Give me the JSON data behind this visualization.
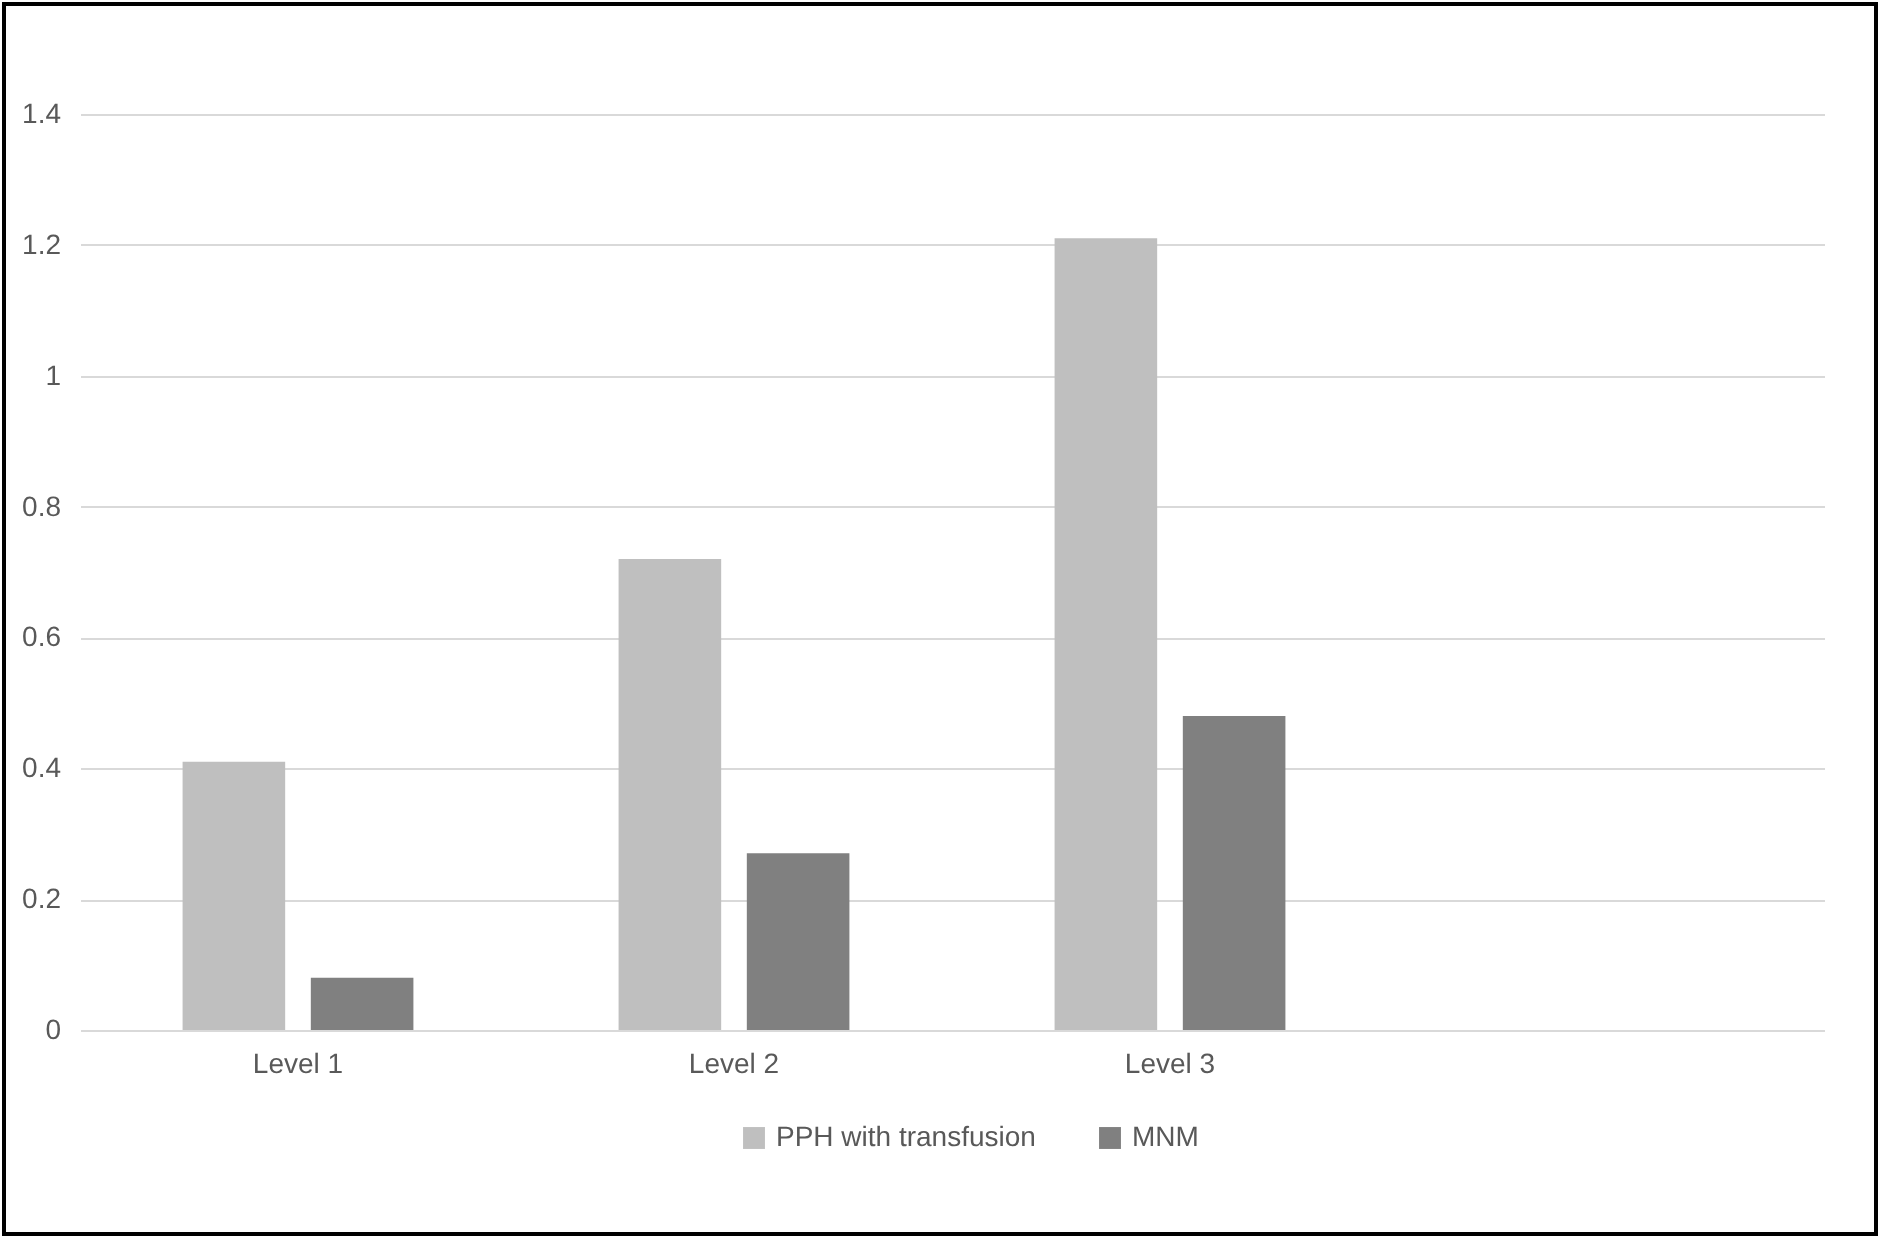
{
  "chart_data": {
    "type": "bar",
    "categories": [
      "Level 1",
      "Level 2",
      "Level 3",
      null
    ],
    "series": [
      {
        "name": "PPH with transfusion",
        "color": "#bfbfbf",
        "values": [
          0.41,
          0.72,
          1.21,
          null
        ]
      },
      {
        "name": "MNM",
        "color": "#808080",
        "values": [
          0.08,
          0.27,
          0.48,
          null
        ]
      }
    ],
    "ylim": [
      0,
      1.4
    ],
    "yticks": [
      0,
      0.2,
      0.4,
      0.6,
      0.8,
      1,
      1.2,
      1.4
    ],
    "grid": "y",
    "legend": "bottom"
  }
}
